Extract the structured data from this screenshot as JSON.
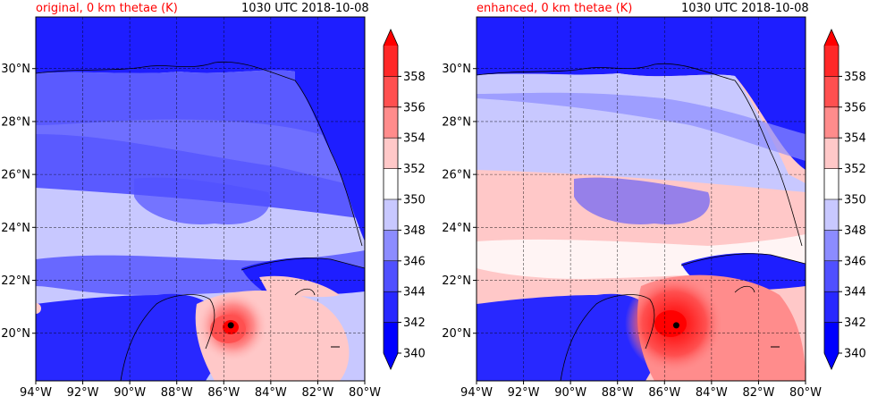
{
  "panels": [
    {
      "id": "original",
      "title_left": "original, 0 km thetae (K)",
      "title_right": "1030 UTC 2018-10-08",
      "storm_center": {
        "lon": -85.7,
        "lat": 20.3
      }
    },
    {
      "id": "enhanced",
      "title_left": "enhanced, 0 km thetae (K)",
      "title_right": "1030 UTC 2018-10-08",
      "storm_center": {
        "lon": -85.5,
        "lat": 20.3
      }
    }
  ],
  "axes": {
    "lon_ticks": [
      "94°W",
      "92°W",
      "90°W",
      "88°W",
      "86°W",
      "84°W",
      "82°W",
      "80°W"
    ],
    "lon_values": [
      -94,
      -92,
      -90,
      -88,
      -86,
      -84,
      -82,
      -80
    ],
    "lat_ticks": [
      "20°N",
      "22°N",
      "24°N",
      "26°N",
      "28°N",
      "30°N"
    ],
    "lat_values": [
      20,
      22,
      24,
      26,
      28,
      30
    ],
    "lon_range": [
      -94,
      -80
    ],
    "lat_range": [
      18,
      32
    ]
  },
  "colorbar": {
    "levels": [
      "340",
      "342",
      "344",
      "346",
      "348",
      "350",
      "352",
      "354",
      "356",
      "358"
    ],
    "colors": [
      "#0000ff",
      "#2828ff",
      "#5050ff",
      "#8c8cff",
      "#c8c8ff",
      "#ffffff",
      "#ffc8c8",
      "#ff8c8c",
      "#ff5050",
      "#ff2828"
    ],
    "extend_low_color": "#0000ff",
    "extend_high_color": "#ff0000"
  },
  "colors": {
    "title_left": "#ff0000",
    "land_original": "#3c3cff",
    "sea_mid": "#a0a0ff"
  }
}
